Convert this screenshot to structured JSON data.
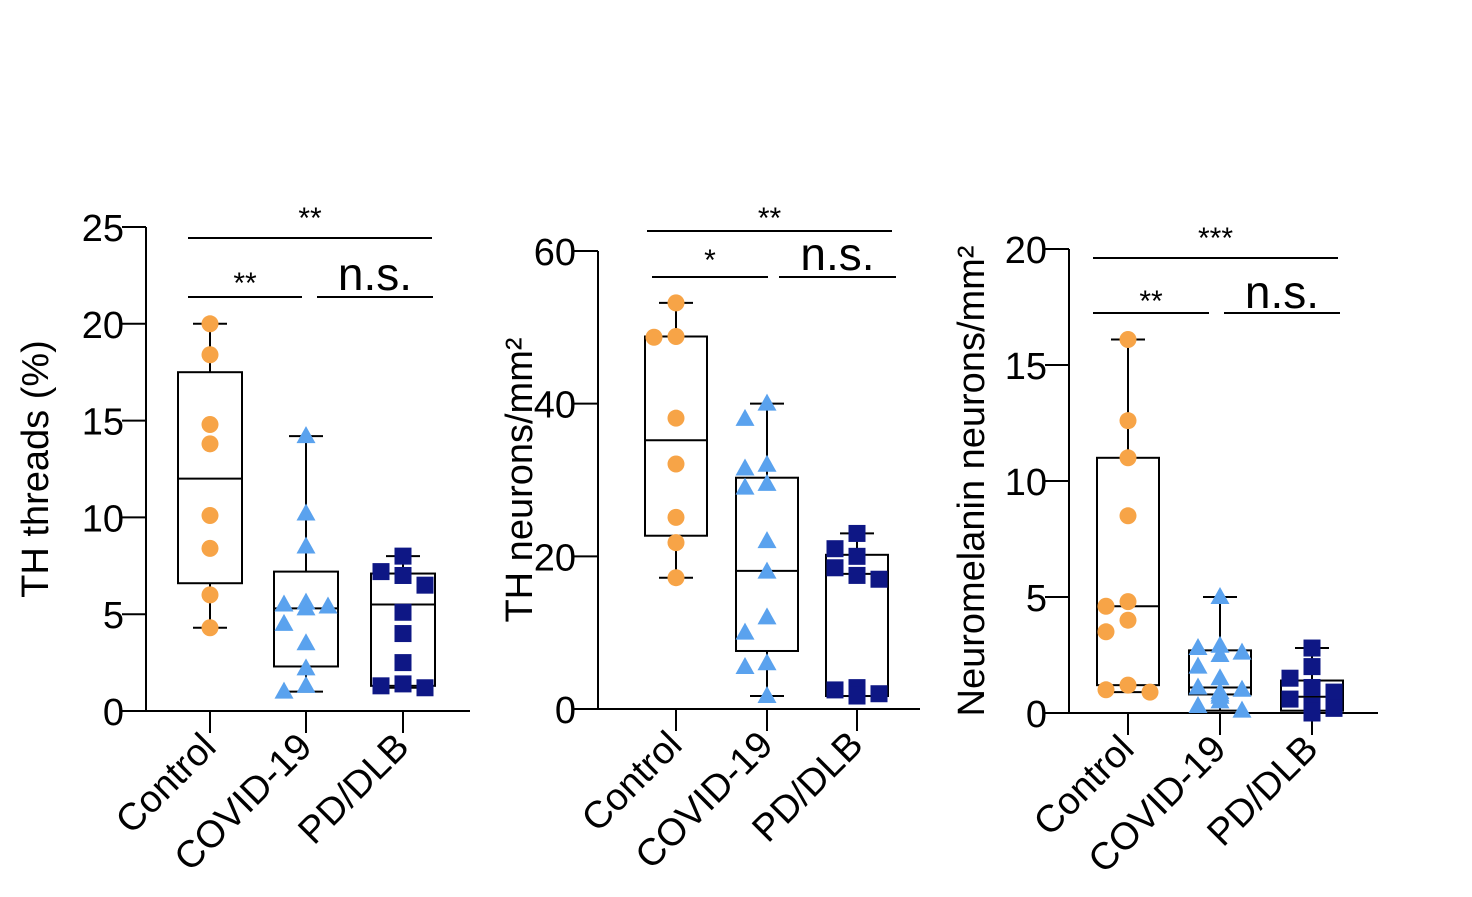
{
  "colors": {
    "control": "#F7A447",
    "covid": "#5AA2EE",
    "pd": "#0E1785",
    "line": "#000000"
  },
  "chart_data": [
    {
      "type": "box",
      "ylabel": "TH threads (%)",
      "ylim": [
        0,
        25
      ],
      "yticks": [
        0,
        5,
        10,
        15,
        20,
        25
      ],
      "categories": [
        "Control",
        "COVID-19",
        "PD/DLB"
      ],
      "series": [
        {
          "name": "Control",
          "marker": "circle",
          "min": 4.3,
          "q1": 6.6,
          "median": 12.0,
          "q3": 17.5,
          "max": 20.0,
          "points": [
            20.0,
            18.4,
            14.8,
            13.8,
            10.1,
            8.4,
            6.0,
            4.3
          ]
        },
        {
          "name": "COVID-19",
          "marker": "triangle",
          "min": 1.0,
          "q1": 2.3,
          "median": 5.3,
          "q3": 7.2,
          "max": 14.2,
          "points": [
            14.2,
            10.2,
            8.5,
            5.6,
            5.5,
            5.4,
            5.3,
            4.5,
            3.5,
            2.2,
            1.3,
            1.0
          ]
        },
        {
          "name": "PD/DLB",
          "marker": "square",
          "min": 1.2,
          "q1": 1.3,
          "median": 5.5,
          "q3": 7.1,
          "max": 8.0,
          "points": [
            8.0,
            7.2,
            7.0,
            6.5,
            5.1,
            4.0,
            2.5,
            1.4,
            1.3,
            1.2
          ]
        }
      ],
      "significance": [
        {
          "from": 0,
          "to": 2,
          "label": "**"
        },
        {
          "from": 0,
          "to": 1,
          "label": "**"
        },
        {
          "from": 1,
          "to": 2,
          "label": "n.s."
        }
      ]
    },
    {
      "type": "box",
      "ylabel": "TH neurons/mm²",
      "ylim": [
        0,
        60
      ],
      "yticks": [
        0,
        20,
        40,
        60
      ],
      "categories": [
        "Control",
        "COVID-19",
        "PD/DLB"
      ],
      "series": [
        {
          "name": "Control",
          "marker": "circle",
          "min": 17.2,
          "q1": 22.7,
          "median": 35.2,
          "q3": 48.8,
          "max": 53.2,
          "points": [
            53.2,
            48.8,
            48.7,
            38.1,
            32.1,
            25.1,
            21.8,
            17.2
          ]
        },
        {
          "name": "COVID-19",
          "marker": "triangle",
          "min": 1.7,
          "q1": 7.6,
          "median": 18.1,
          "q3": 30.3,
          "max": 40.0,
          "points": [
            40.0,
            38.0,
            32.0,
            31.5,
            29.5,
            29.0,
            22.0,
            18.0,
            12.0,
            10.0,
            6.0,
            5.5,
            1.7
          ]
        },
        {
          "name": "PD/DLB",
          "marker": "square",
          "min": 1.7,
          "q1": 1.7,
          "median": 17.7,
          "q3": 20.2,
          "max": 23.0,
          "points": [
            23.0,
            21.0,
            20.0,
            18.5,
            17.5,
            17.0,
            2.8,
            2.5,
            2.0,
            1.8,
            1.7
          ]
        }
      ],
      "significance": [
        {
          "from": 0,
          "to": 2,
          "label": "**"
        },
        {
          "from": 0,
          "to": 1,
          "label": "*"
        },
        {
          "from": 1,
          "to": 2,
          "label": "n.s."
        }
      ]
    },
    {
      "type": "box",
      "ylabel": "Neuromelanin neurons/mm²",
      "ylim": [
        0,
        20
      ],
      "yticks": [
        0,
        5,
        10,
        15,
        20
      ],
      "categories": [
        "Control",
        "COVID-19",
        "PD/DLB"
      ],
      "series": [
        {
          "name": "Control",
          "marker": "circle",
          "min": 0.9,
          "q1": 1.2,
          "median": 4.6,
          "q3": 11.0,
          "max": 16.1,
          "points": [
            16.1,
            12.6,
            11.0,
            8.5,
            4.8,
            4.6,
            4.0,
            3.5,
            1.2,
            1.0,
            0.9
          ]
        },
        {
          "name": "COVID-19",
          "marker": "triangle",
          "min": 0.1,
          "q1": 0.8,
          "median": 1.1,
          "q3": 2.7,
          "max": 5.0,
          "points": [
            5.0,
            2.9,
            2.8,
            2.6,
            2.5,
            2.0,
            1.5,
            1.1,
            1.0,
            0.9,
            0.8,
            0.7,
            0.5,
            0.3,
            0.1
          ]
        },
        {
          "name": "PD/DLB",
          "marker": "square",
          "min": 0.0,
          "q1": 0.1,
          "median": 0.7,
          "q3": 1.4,
          "max": 2.8,
          "points": [
            2.8,
            2.0,
            1.5,
            1.1,
            0.9,
            0.6,
            0.3,
            0.2,
            0.2,
            0.1,
            0.1,
            0.0
          ]
        }
      ],
      "significance": [
        {
          "from": 0,
          "to": 2,
          "label": "***"
        },
        {
          "from": 0,
          "to": 1,
          "label": "**"
        },
        {
          "from": 1,
          "to": 2,
          "label": "n.s."
        }
      ]
    }
  ]
}
